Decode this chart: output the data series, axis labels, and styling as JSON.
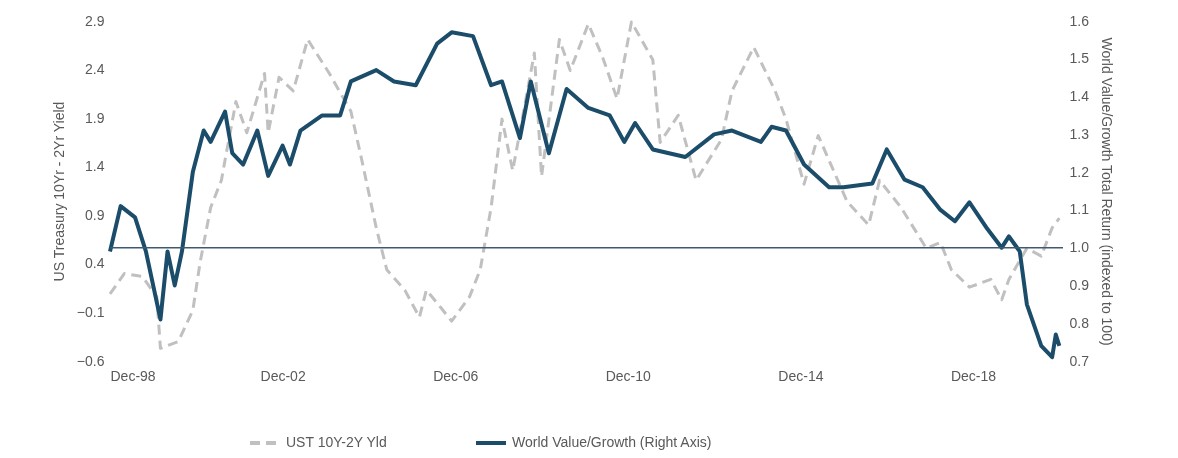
{
  "chart_data": {
    "type": "line",
    "ylabel": "US Treasury 10Yr - 2Yr Yield",
    "y2label": "World Value/Growth Total Return (indexed to 100)",
    "xlim": [
      "1998-12",
      "2021-01"
    ],
    "xticks": [
      {
        "value": "1998-12",
        "label": "Dec-98"
      },
      {
        "value": "2002-12",
        "label": "Dec-02"
      },
      {
        "value": "2006-12",
        "label": "Dec-06"
      },
      {
        "value": "2010-12",
        "label": "Dec-10"
      },
      {
        "value": "2014-12",
        "label": "Dec-14"
      },
      {
        "value": "2018-12",
        "label": "Dec-18"
      }
    ],
    "ylim": [
      -0.6,
      2.9
    ],
    "yticks": [
      -0.6,
      -0.1,
      0.4,
      0.9,
      1.4,
      1.9,
      2.4,
      2.9
    ],
    "y2lim": [
      0.7,
      1.6
    ],
    "y2ticks": [
      0.7,
      0.8,
      0.9,
      {
        "value": 1,
        "label": "1.0"
      },
      1.1,
      1.2,
      1.3,
      1.4,
      1.5,
      1.6
    ],
    "grid": false,
    "legend": "bottom",
    "ref_lines": [
      {
        "axis": "y2",
        "value": 1.0,
        "color": "#3d5a73"
      }
    ],
    "series": [
      {
        "name": "UST 10Y-2Y Yld",
        "color": "#c0c0c0",
        "line_style": "dashed",
        "x": [
          "1998-12",
          "1999-04",
          "1999-09",
          "2000-01",
          "2000-02",
          "2000-07",
          "2000-11",
          "2001-01",
          "2001-04",
          "2001-07",
          "2001-08",
          "2001-11",
          "2002-02",
          "2002-07",
          "2002-08",
          "2002-11",
          "2003-03",
          "2003-07",
          "2004-01",
          "2004-07",
          "2004-10",
          "2005-02",
          "2005-05",
          "2005-10",
          "2006-02",
          "2006-04",
          "2006-08",
          "2006-11",
          "2007-04",
          "2007-07",
          "2007-10",
          "2008-01",
          "2008-04",
          "2008-10",
          "2008-12",
          "2009-05",
          "2009-08",
          "2010-01",
          "2010-05",
          "2010-09",
          "2011-01",
          "2011-07",
          "2011-09",
          "2012-02",
          "2012-07",
          "2013-02",
          "2013-05",
          "2013-11",
          "2014-05",
          "2014-08",
          "2015-01",
          "2015-05",
          "2016-01",
          "2016-07",
          "2016-10",
          "2017-04",
          "2017-11",
          "2018-03",
          "2018-06",
          "2018-11",
          "2019-05",
          "2019-08",
          "2019-10",
          "2020-03",
          "2020-07",
          "2020-10",
          "2020-12"
        ],
        "values": [
          0.09,
          0.3,
          0.27,
          0.06,
          -0.47,
          -0.4,
          -0.08,
          0.41,
          0.98,
          1.26,
          1.47,
          2.07,
          1.75,
          2.36,
          1.75,
          2.32,
          2.18,
          2.71,
          2.36,
          1.97,
          1.47,
          0.77,
          0.34,
          0.13,
          -0.15,
          0.13,
          -0.05,
          -0.19,
          0.06,
          0.34,
          0.98,
          1.89,
          1.36,
          2.57,
          1.3,
          2.71,
          2.39,
          2.87,
          2.53,
          2.1,
          2.89,
          2.5,
          1.65,
          1.93,
          1.26,
          1.68,
          2.18,
          2.63,
          2.18,
          1.89,
          1.22,
          1.72,
          1.04,
          0.8,
          1.26,
          0.98,
          0.56,
          0.62,
          0.34,
          0.16,
          0.24,
          0.03,
          0.24,
          0.56,
          0.48,
          0.77,
          0.87
        ]
      },
      {
        "name": "World Value/Growth (Right Axis)",
        "color": "#1b4d6b",
        "line_style": "solid",
        "axis": "y2",
        "x": [
          "1998-12",
          "1999-03",
          "1999-07",
          "1999-10",
          "2000-02",
          "2000-04",
          "2000-06",
          "2000-08",
          "2000-11",
          "2001-02",
          "2001-04",
          "2001-08",
          "2001-10",
          "2002-01",
          "2002-05",
          "2002-08",
          "2002-12",
          "2003-02",
          "2003-05",
          "2003-11",
          "2004-04",
          "2004-07",
          "2005-02",
          "2005-07",
          "2006-01",
          "2006-07",
          "2006-11",
          "2007-05",
          "2007-10",
          "2008-01",
          "2008-06",
          "2008-09",
          "2009-02",
          "2009-07",
          "2010-01",
          "2010-07",
          "2010-11",
          "2011-02",
          "2011-07",
          "2012-04",
          "2012-12",
          "2013-05",
          "2014-01",
          "2014-04",
          "2014-08",
          "2015-01",
          "2015-08",
          "2015-12",
          "2016-08",
          "2016-12",
          "2017-05",
          "2017-10",
          "2018-03",
          "2018-07",
          "2018-11",
          "2019-04",
          "2019-08",
          "2019-10",
          "2020-01",
          "2020-03",
          "2020-07",
          "2020-10",
          "2020-11",
          "2020-12"
        ],
        "values": [
          0.99,
          1.11,
          1.08,
          0.99,
          0.81,
          0.99,
          0.9,
          0.99,
          1.2,
          1.31,
          1.28,
          1.36,
          1.25,
          1.22,
          1.31,
          1.19,
          1.27,
          1.22,
          1.31,
          1.35,
          1.35,
          1.44,
          1.47,
          1.44,
          1.43,
          1.54,
          1.57,
          1.56,
          1.43,
          1.44,
          1.29,
          1.44,
          1.25,
          1.42,
          1.37,
          1.35,
          1.28,
          1.33,
          1.26,
          1.24,
          1.3,
          1.31,
          1.28,
          1.32,
          1.31,
          1.22,
          1.16,
          1.16,
          1.17,
          1.26,
          1.18,
          1.16,
          1.1,
          1.07,
          1.12,
          1.05,
          1.0,
          1.03,
          0.99,
          0.85,
          0.74,
          0.71,
          0.77,
          0.74
        ]
      }
    ]
  }
}
